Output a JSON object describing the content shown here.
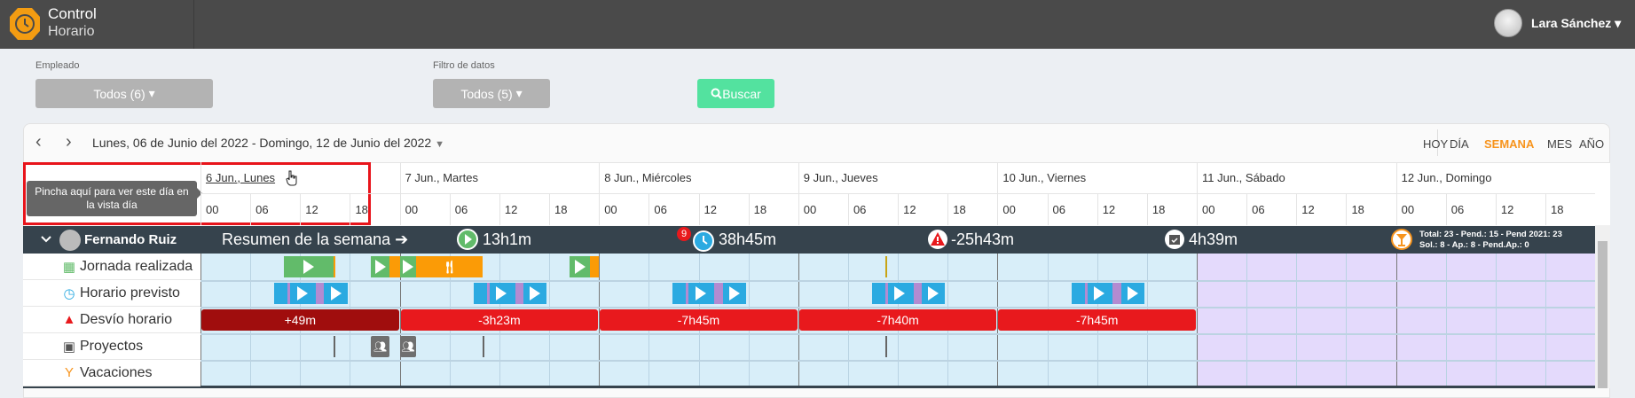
{
  "app": {
    "title_line1": "Control",
    "title_line2": "Horario",
    "user": "Lara Sánchez"
  },
  "filters": {
    "employee_label": "Empleado",
    "employee_value": "Todos (6)",
    "data_label": "Filtro de datos",
    "data_value": "Todos (5)",
    "search_label": "Buscar"
  },
  "calendar": {
    "range": "Lunes, 06 de Junio del 2022 - Domingo, 12 de Junio del 2022",
    "views": [
      "HOY",
      "DÍA",
      "SEMANA",
      "MES",
      "AÑO"
    ],
    "active_view": "SEMANA",
    "accent": "#f7941d",
    "days": [
      "6 Jun., Lunes",
      "7 Jun., Martes",
      "8 Jun., Miércoles",
      "9 Jun., Jueves",
      "10 Jun., Viernes",
      "11 Jun., Sábado",
      "12 Jun., Domingo"
    ],
    "hours": [
      "00",
      "06",
      "12",
      "18"
    ],
    "tooltip": "Pincha aquí para ver este día en la vista día"
  },
  "employee": {
    "name": "Fernando Ruiz"
  },
  "summary": {
    "label": "Resumen de la semana",
    "worked": "13h1m",
    "badge": "9",
    "scheduled": "38h45m",
    "deviation": "-25h43m",
    "projects": "4h39m",
    "vac_line1": "Total: 23 - Pend.: 15 - Pend 2021: 23",
    "vac_line2": "Sol.: 8 - Ap.: 8 - Pend.Ap.: 0"
  },
  "rows": [
    "Jornada realizada",
    "Horario previsto",
    "Desvío horario",
    "Proyectos",
    "Vacaciones"
  ],
  "colors": {
    "work": "#62bb6a",
    "break": "#fb9b06",
    "scheduled": "#2baae1",
    "sched_break": "#b38bd1",
    "dev_pos": "#a00d0d",
    "dev_neg": "#e8191d",
    "weekday": "#d8eef9",
    "weekend": "#e4dafc"
  },
  "worked": [
    {
      "day": 0,
      "start": 10.0,
      "end": 16.0,
      "type": "work"
    },
    {
      "day": 0,
      "start": 16.0,
      "end": 16.2,
      "type": "break"
    },
    {
      "day": 0,
      "start": 20.5,
      "end": 22.8,
      "type": "work"
    },
    {
      "day": 0,
      "start": 22.8,
      "end": 24,
      "type": "break"
    },
    {
      "day": 1,
      "start": 0,
      "end": 2.0,
      "type": "work"
    },
    {
      "day": 1,
      "start": 2.0,
      "end": 10.0,
      "type": "meal"
    },
    {
      "day": 1,
      "start": 20.5,
      "end": 22.9,
      "type": "work"
    },
    {
      "day": 1,
      "start": 22.9,
      "end": 24,
      "type": "break"
    },
    {
      "day": 3,
      "start": 10.5,
      "end": 10.6,
      "type": "mark"
    }
  ],
  "deviation": [
    {
      "day": 0,
      "value": "+49m"
    },
    {
      "day": 1,
      "value": "-3h23m"
    },
    {
      "day": 2,
      "value": "-7h45m"
    },
    {
      "day": 3,
      "value": "-7h40m"
    },
    {
      "day": 4,
      "value": "-7h45m"
    }
  ],
  "projects": [
    {
      "day": 0,
      "start": 16.0,
      "type": "line"
    },
    {
      "day": 0,
      "start": 20.5,
      "end": 22.8,
      "type": "team"
    },
    {
      "day": 1,
      "start": 0,
      "end": 2.0,
      "type": "team"
    },
    {
      "day": 1,
      "start": 10.0,
      "type": "line"
    },
    {
      "day": 3,
      "start": 10.5,
      "type": "line"
    }
  ]
}
